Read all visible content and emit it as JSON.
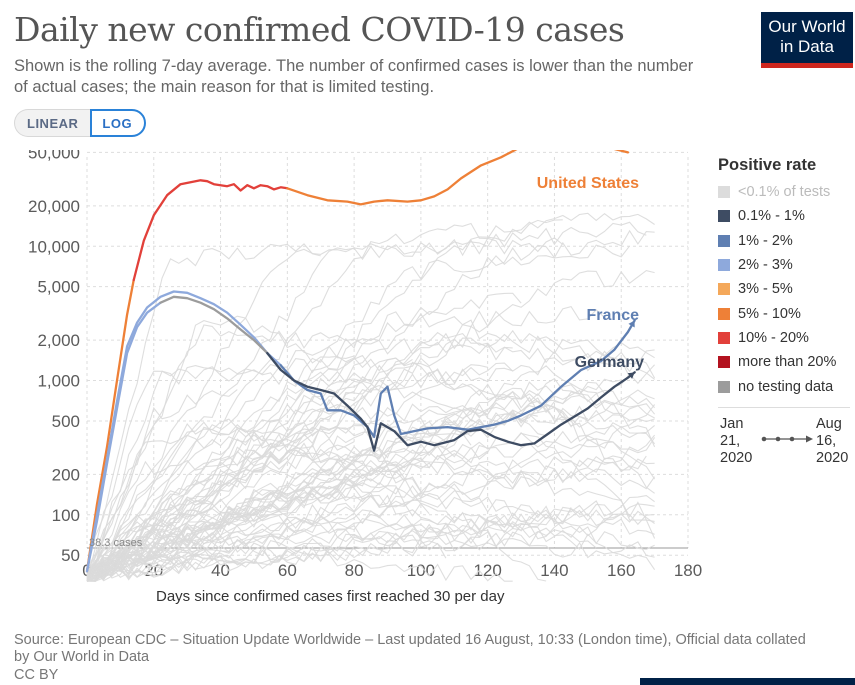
{
  "header": {
    "title": "Daily new confirmed COVID-19 cases",
    "subtitle": "Shown is the rolling 7-day average. The number of confirmed cases is lower than the number of actual cases; the main reason for that is limited testing."
  },
  "logo": {
    "line1": "Our World",
    "line2": "in Data",
    "bg": "#002147",
    "accent": "#ce261e"
  },
  "scale_toggle": {
    "linear_label": "LINEAR",
    "log_label": "LOG",
    "active": "LOG"
  },
  "legend": {
    "title": "Positive rate",
    "items": [
      {
        "label": "<0.1% of tests",
        "color": "#dcdcdc",
        "faded": true
      },
      {
        "label": "0.1% - 1%",
        "color": "#3e4c63"
      },
      {
        "label": "1% - 2%",
        "color": "#5f7fb2"
      },
      {
        "label": "2% - 3%",
        "color": "#8ea9dc"
      },
      {
        "label": "3% - 5%",
        "color": "#f4a85a"
      },
      {
        "label": "5% - 10%",
        "color": "#ee8037"
      },
      {
        "label": "10% - 20%",
        "color": "#e2403a"
      },
      {
        "label": "more than 20%",
        "color": "#b3121f"
      },
      {
        "label": "no testing data",
        "color": "#9c9c9c"
      }
    ],
    "timeline_start": [
      "Jan",
      "21,",
      "2020"
    ],
    "timeline_end": [
      "Aug",
      "16,",
      "2020"
    ]
  },
  "chart_data": {
    "type": "line",
    "title": "Daily new confirmed COVID-19 cases",
    "xlabel": "Days since confirmed cases first reached 30 per day",
    "ylabel": "",
    "x_scale": "linear",
    "y_scale": "log",
    "xlim": [
      0,
      180
    ],
    "ylim": [
      30,
      80000
    ],
    "x_ticks": [
      0,
      20,
      40,
      60,
      80,
      100,
      120,
      140,
      160,
      180
    ],
    "y_ticks": [
      50,
      100,
      200,
      500,
      1000,
      2000,
      5000,
      10000,
      20000,
      50000
    ],
    "y_tick_labels": [
      "50",
      "100",
      "200",
      "500",
      "1,000",
      "2,000",
      "5,000",
      "10,000",
      "20,000",
      "50,000"
    ],
    "start_annotation": "38.3 cases",
    "series": [
      {
        "name": "United States",
        "label_color": "#ee8037",
        "segments": [
          {
            "color": "#ee8037",
            "points": [
              [
                0,
                38
              ],
              [
                3,
                120
              ],
              [
                6,
                320
              ],
              [
                9,
                1000
              ],
              [
                12,
                3100
              ],
              [
                14,
                5600
              ]
            ]
          },
          {
            "color": "#e2403a",
            "points": [
              [
                14,
                5600
              ],
              [
                17,
                11000
              ],
              [
                20,
                17000
              ],
              [
                24,
                24000
              ],
              [
                28,
                29000
              ],
              [
                31,
                30000
              ],
              [
                34,
                31000
              ],
              [
                36,
                30500
              ],
              [
                38,
                29000
              ],
              [
                42,
                28000
              ],
              [
                44,
                29000
              ],
              [
                46,
                26000
              ],
              [
                48,
                28500
              ],
              [
                50,
                27000
              ],
              [
                52,
                28500
              ],
              [
                54,
                28000
              ],
              [
                56,
                26500
              ],
              [
                58,
                27500
              ],
              [
                60,
                27000
              ]
            ]
          },
          {
            "color": "#ee8037",
            "points": [
              [
                60,
                27000
              ],
              [
                66,
                24000
              ],
              [
                72,
                22000
              ],
              [
                78,
                21500
              ],
              [
                82,
                20500
              ],
              [
                86,
                21500
              ],
              [
                90,
                22000
              ],
              [
                96,
                21500
              ],
              [
                100,
                22000
              ],
              [
                104,
                23500
              ],
              [
                108,
                26500
              ],
              [
                112,
                32000
              ],
              [
                118,
                40000
              ],
              [
                124,
                46000
              ],
              [
                130,
                55000
              ],
              [
                134,
                63000
              ],
              [
                140,
                64000
              ],
              [
                146,
                60000
              ],
              [
                152,
                58000
              ],
              [
                158,
                53000
              ],
              [
                162,
                50000
              ]
            ]
          }
        ]
      },
      {
        "name": "France",
        "label_color": "#5f7fb2",
        "segments": [
          {
            "color": "#8ea9dc",
            "points": [
              [
                0,
                38
              ],
              [
                3,
                100
              ],
              [
                6,
                260
              ],
              [
                9,
                700
              ],
              [
                12,
                1800
              ],
              [
                15,
                2700
              ],
              [
                18,
                3500
              ],
              [
                22,
                4200
              ],
              [
                26,
                4600
              ],
              [
                30,
                4500
              ],
              [
                34,
                4100
              ],
              [
                38,
                3700
              ],
              [
                42,
                3200
              ],
              [
                46,
                2600
              ],
              [
                50,
                2100
              ],
              [
                54,
                1600
              ],
              [
                58,
                1300
              ]
            ]
          },
          {
            "color": "#5f7fb2",
            "points": [
              [
                58,
                1300
              ],
              [
                62,
                1000
              ],
              [
                66,
                850
              ],
              [
                70,
                800
              ],
              [
                72,
                600
              ],
              [
                76,
                600
              ],
              [
                80,
                550
              ],
              [
                84,
                450
              ],
              [
                86,
                380
              ],
              [
                88,
                800
              ],
              [
                90,
                900
              ],
              [
                92,
                550
              ],
              [
                94,
                400
              ],
              [
                98,
                420
              ],
              [
                102,
                440
              ],
              [
                108,
                450
              ],
              [
                114,
                430
              ],
              [
                118,
                450
              ],
              [
                122,
                470
              ],
              [
                126,
                500
              ],
              [
                130,
                550
              ],
              [
                136,
                650
              ],
              [
                142,
                900
              ],
              [
                148,
                1200
              ],
              [
                154,
                1400
              ],
              [
                158,
                1700
              ],
              [
                162,
                2300
              ],
              [
                164,
                2800
              ]
            ]
          }
        ]
      },
      {
        "name": "Germany",
        "label_color": "#3e4c63",
        "segments": [
          {
            "color": "#8ea9dc",
            "points": [
              [
                0,
                38
              ],
              [
                3,
                90
              ],
              [
                6,
                240
              ],
              [
                9,
                620
              ],
              [
                12,
                1600
              ],
              [
                15,
                2500
              ],
              [
                18,
                3200
              ],
              [
                22,
                3800
              ]
            ]
          },
          {
            "color": "#9c9c9c",
            "points": [
              [
                22,
                3800
              ],
              [
                26,
                4200
              ],
              [
                30,
                4100
              ],
              [
                34,
                3800
              ],
              [
                38,
                3400
              ],
              [
                42,
                2900
              ],
              [
                46,
                2400
              ],
              [
                50,
                2000
              ],
              [
                54,
                1600
              ]
            ]
          },
          {
            "color": "#3e4c63",
            "points": [
              [
                54,
                1600
              ],
              [
                58,
                1200
              ],
              [
                62,
                1000
              ],
              [
                66,
                900
              ],
              [
                70,
                850
              ],
              [
                74,
                800
              ],
              [
                78,
                650
              ],
              [
                82,
                520
              ],
              [
                84,
                450
              ],
              [
                86,
                300
              ],
              [
                88,
                480
              ],
              [
                92,
                420
              ],
              [
                96,
                330
              ],
              [
                100,
                350
              ],
              [
                104,
                330
              ],
              [
                110,
                360
              ],
              [
                114,
                420
              ],
              [
                118,
                430
              ],
              [
                122,
                380
              ],
              [
                126,
                350
              ],
              [
                130,
                330
              ],
              [
                134,
                340
              ],
              [
                138,
                400
              ],
              [
                142,
                470
              ],
              [
                146,
                540
              ],
              [
                150,
                620
              ],
              [
                154,
                750
              ],
              [
                158,
                900
              ],
              [
                162,
                1050
              ],
              [
                164,
                1150
              ]
            ]
          }
        ]
      }
    ]
  },
  "x_axis_title": "Days since confirmed cases first reached 30 per day",
  "footer": {
    "source": "Source: European CDC – Situation Update Worldwide – Last updated 16 August, 10:33 (London time), Official data collated by Our World in Data",
    "license": "CC BY"
  }
}
